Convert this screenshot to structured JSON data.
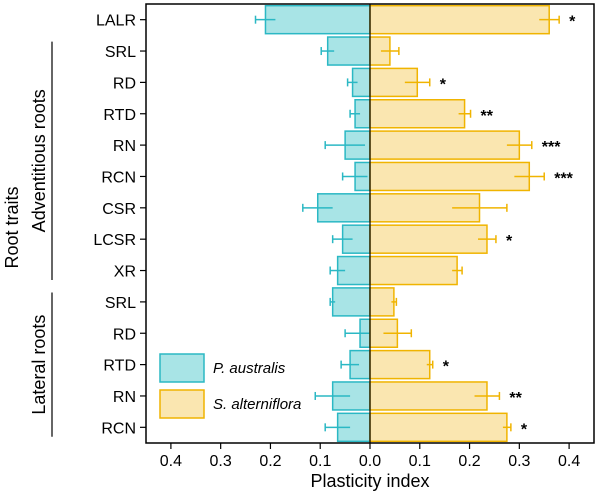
{
  "chart_data": {
    "type": "bar",
    "orientation": "horizontal-diverging",
    "xlabel": "Plasticity index",
    "ylabel": "Root traits",
    "xlim": [
      -0.45,
      0.45
    ],
    "xticks": [
      {
        "value": -0.4,
        "label": "0.4"
      },
      {
        "value": -0.3,
        "label": "0.3"
      },
      {
        "value": -0.2,
        "label": "0.2"
      },
      {
        "value": -0.1,
        "label": "0.1"
      },
      {
        "value": 0.0,
        "label": "0.0"
      },
      {
        "value": 0.1,
        "label": "0.1"
      },
      {
        "value": 0.2,
        "label": "0.2"
      },
      {
        "value": 0.3,
        "label": "0.3"
      },
      {
        "value": 0.4,
        "label": "0.4"
      }
    ],
    "groups": [
      {
        "name": "Adventitious roots",
        "from": 1,
        "to": 8
      },
      {
        "name": "Lateral roots",
        "from": 9,
        "to": 13
      }
    ],
    "categories": [
      "LALR",
      "SRL",
      "RD",
      "RTD",
      "RN",
      "RCN",
      "CSR",
      "LCSR",
      "XR",
      "SRL",
      "RD",
      "RTD",
      "RN",
      "RCN"
    ],
    "series": [
      {
        "name": "P. australis",
        "color": "#2bb8c4",
        "fill": "#a8e4e6",
        "values": [
          0.21,
          0.085,
          0.035,
          0.03,
          0.05,
          0.03,
          0.105,
          0.055,
          0.065,
          0.075,
          0.02,
          0.04,
          0.075,
          0.065
        ],
        "errors": [
          0.02,
          0.013,
          0.01,
          0.01,
          0.04,
          0.025,
          0.03,
          0.02,
          0.015,
          0.005,
          0.03,
          0.018,
          0.035,
          0.025
        ]
      },
      {
        "name": "S. alterniflora",
        "color": "#f0b400",
        "fill": "#fae6b0",
        "values": [
          0.36,
          0.04,
          0.095,
          0.19,
          0.3,
          0.32,
          0.22,
          0.235,
          0.175,
          0.048,
          0.055,
          0.12,
          0.235,
          0.275
        ],
        "errors": [
          0.02,
          0.018,
          0.025,
          0.012,
          0.025,
          0.03,
          0.055,
          0.018,
          0.01,
          0.005,
          0.028,
          0.006,
          0.025,
          0.008
        ]
      }
    ],
    "significance": [
      "*",
      "",
      "*",
      "**",
      "***",
      "***",
      "",
      "*",
      "",
      "",
      "",
      "*",
      "**",
      "*"
    ],
    "legend": {
      "placement": "bottom-left"
    }
  }
}
